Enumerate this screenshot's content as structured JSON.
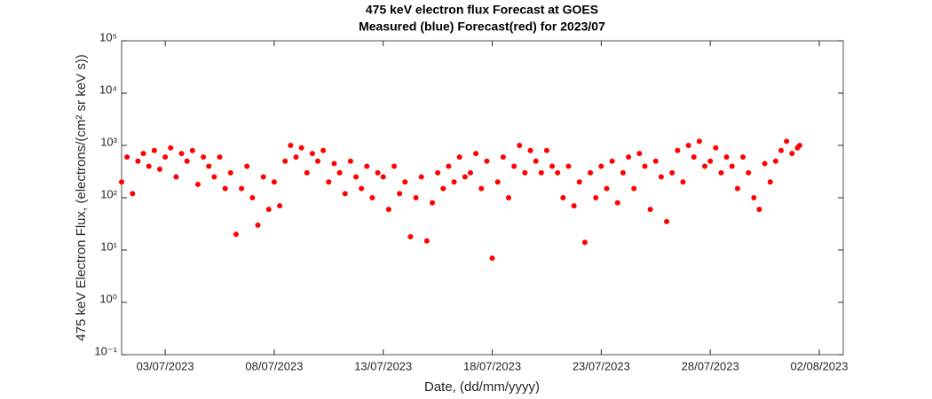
{
  "chart_data": {
    "type": "scatter",
    "title": "475 keV electron flux Forecast at GOES",
    "subtitle": "Measured (blue) Forecast(red) for 2023/07",
    "x_label": "Date, (dd/mm/yyyy)",
    "y_label": "475 keV Electron Flux, (electrons/(cm² sr keV s))",
    "color": "#ff0000",
    "log_y": true,
    "x": [
      1,
      1.25,
      1.5,
      1.75,
      2,
      2.25,
      2.5,
      2.75,
      3,
      3.25,
      3.5,
      3.75,
      4,
      4.25,
      4.5,
      4.75,
      5,
      5.25,
      5.5,
      5.75,
      6,
      6.25,
      6.5,
      6.75,
      7,
      7.25,
      7.5,
      7.75,
      8,
      8.25,
      8.5,
      8.75,
      9,
      9.25,
      9.5,
      9.75,
      10,
      10.25,
      10.5,
      10.75,
      11,
      11.25,
      11.5,
      11.75,
      12,
      12.25,
      12.5,
      12.75,
      13,
      13.25,
      13.5,
      13.75,
      14,
      14.25,
      14.5,
      14.75,
      15,
      15.25,
      15.5,
      15.75,
      16,
      16.25,
      16.5,
      16.75,
      17,
      17.25,
      17.5,
      17.75,
      18,
      18.25,
      18.5,
      18.75,
      19,
      19.25,
      19.5,
      19.75,
      20,
      20.25,
      20.5,
      20.75,
      21,
      21.25,
      21.5,
      21.75,
      22,
      22.25,
      22.5,
      22.75,
      23,
      23.25,
      23.5,
      23.75,
      24,
      24.25,
      24.5,
      24.75,
      25,
      25.25,
      25.5,
      25.75,
      26,
      26.25,
      26.5,
      26.75,
      27,
      27.25,
      27.5,
      27.75,
      28,
      28.25,
      28.5,
      28.75,
      29,
      29.25,
      29.5,
      29.75,
      30,
      30.25,
      30.5,
      30.75,
      31,
      31.25,
      31.5,
      31.75,
      32,
      32.1
    ],
    "values": [
      200,
      600,
      120,
      500,
      700,
      400,
      800,
      350,
      600,
      900,
      250,
      700,
      500,
      800,
      180,
      600,
      400,
      250,
      600,
      150,
      300,
      20,
      150,
      400,
      100,
      30,
      250,
      60,
      200,
      70,
      500,
      1000,
      600,
      900,
      300,
      700,
      500,
      800,
      200,
      450,
      300,
      120,
      500,
      250,
      150,
      400,
      100,
      300,
      250,
      60,
      400,
      120,
      200,
      18,
      100,
      250,
      15,
      80,
      300,
      150,
      400,
      200,
      600,
      250,
      300,
      700,
      150,
      500,
      7,
      200,
      600,
      100,
      400,
      1000,
      300,
      800,
      500,
      300,
      800,
      400,
      300,
      100,
      400,
      70,
      200,
      14,
      300,
      100,
      400,
      150,
      500,
      80,
      300,
      600,
      150,
      700,
      400,
      60,
      500,
      250,
      35,
      300,
      800,
      200,
      1000,
      600,
      1200,
      400,
      500,
      900,
      300,
      600,
      400,
      150,
      600,
      300,
      100,
      60,
      450,
      200,
      500,
      800,
      1200,
      700,
      900,
      1000
    ],
    "xlim": [
      1,
      34.1
    ],
    "xticks": [
      {
        "value": 3,
        "label": "03/07/2023"
      },
      {
        "value": 8,
        "label": "08/07/2023"
      },
      {
        "value": 13,
        "label": "13/07/2023"
      },
      {
        "value": 18,
        "label": "18/07/2023"
      },
      {
        "value": 23,
        "label": "23/07/2023"
      },
      {
        "value": 28,
        "label": "28/07/2023"
      },
      {
        "value": 33,
        "label": "02/08/2023"
      }
    ],
    "ylim": [
      0.1,
      100000
    ],
    "yticks": [
      {
        "value": 0.1,
        "label": "10⁻¹"
      },
      {
        "value": 1,
        "label": "10⁰"
      },
      {
        "value": 10,
        "label": "10¹"
      },
      {
        "value": 100,
        "label": "10²"
      },
      {
        "value": 1000,
        "label": "10³"
      },
      {
        "value": 10000,
        "label": "10⁴"
      },
      {
        "value": 100000,
        "label": "10⁵"
      }
    ]
  }
}
